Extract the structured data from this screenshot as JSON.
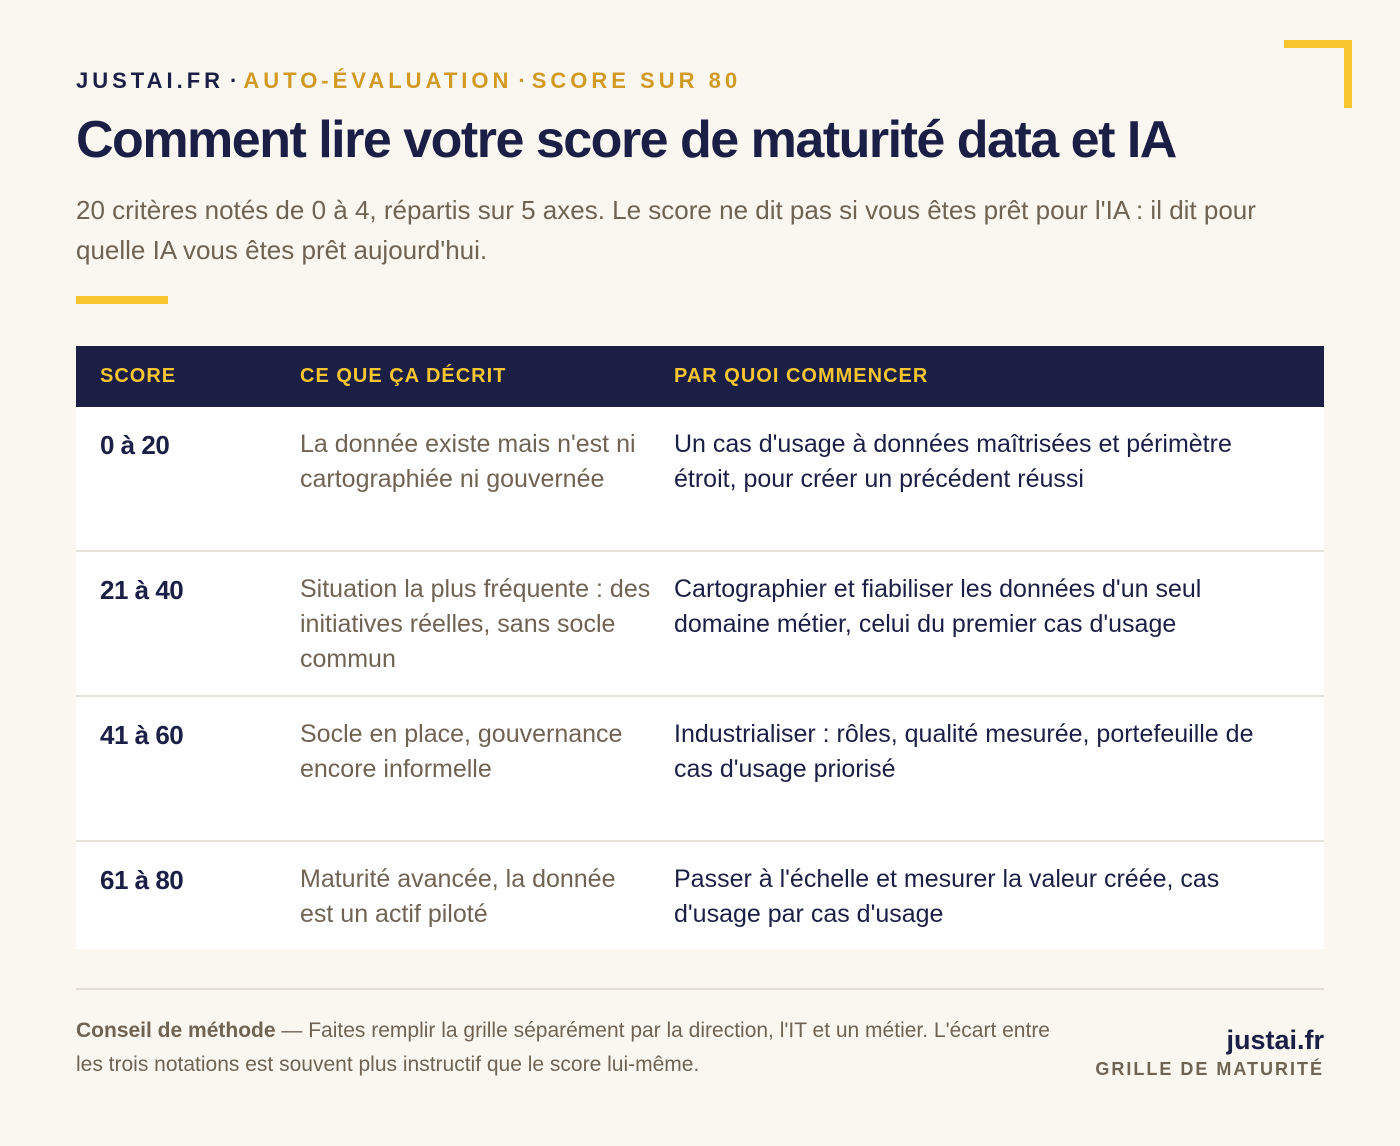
{
  "header": {
    "brand": "JUSTAI.FR",
    "separator": "·",
    "kicker_part1": "AUTO-ÉVALUATION",
    "kicker_sep": "·",
    "kicker_part2": "SCORE SUR 80",
    "title": "Comment lire votre score de maturité data et IA",
    "subtitle": "20 critères notés de 0 à 4, répartis sur 5 axes. Le score ne dit pas si vous êtes prêt pour l'IA : il dit pour quelle IA vous êtes prêt aujourd'hui."
  },
  "colors": {
    "navy": "#1b1e45",
    "gold": "#f7c52e",
    "accent_text": "#d19a24",
    "muted": "#6f6353",
    "background": "#faf7f1"
  },
  "table": {
    "headers": [
      "SCORE",
      "CE QUE ÇA DÉCRIT",
      "PAR QUOI COMMENCER"
    ],
    "rows": [
      {
        "score": "0 à 20",
        "description": "La donnée existe mais n'est ni cartographiée ni gouvernée",
        "start": "Un cas d'usage à données maîtrisées et périmètre étroit, pour créer un précédent réussi"
      },
      {
        "score": "21 à 40",
        "description": "Situation la plus fréquente : des initiatives réelles, sans socle commun",
        "start": "Cartographier et fiabiliser les données d'un seul domaine métier, celui du premier cas d'usage"
      },
      {
        "score": "41 à 60",
        "description": "Socle en place, gouvernance encore informelle",
        "start": "Industrialiser : rôles, qualité mesurée, portefeuille de cas d'usage priorisé"
      },
      {
        "score": "61 à 80",
        "description": "Maturité avancée, la donnée est un actif piloté",
        "start": "Passer à l'échelle et mesurer la valeur créée, cas d'usage par cas d'usage"
      }
    ]
  },
  "footer": {
    "note_label": "Conseil de méthode",
    "note_text": " — Faites remplir la grille séparément par la direction, l'IT et un métier. L'écart entre les trois notations est souvent plus instructif que le score lui-même.",
    "site": "justai.fr",
    "tagline": "GRILLE DE MATURITÉ"
  }
}
